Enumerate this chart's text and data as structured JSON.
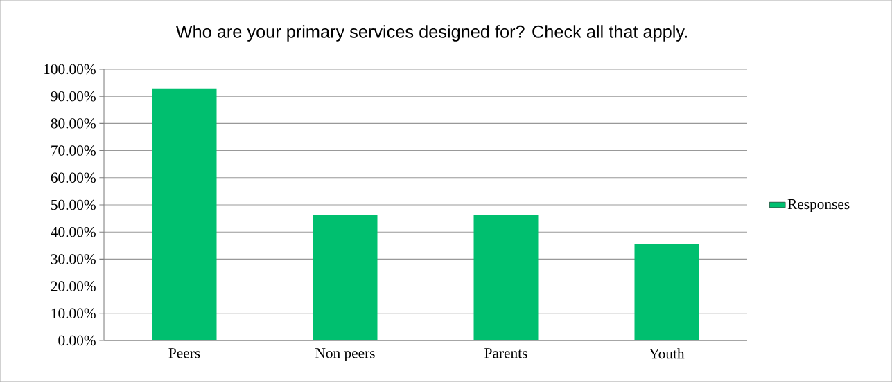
{
  "chart_data": {
    "type": "bar",
    "title": "Who are your primary services designed for? Check all that apply.",
    "categories": [
      "Peers",
      "Non peers",
      "Parents",
      "Youth"
    ],
    "series": [
      {
        "name": "Responses",
        "color": "#00bf6f",
        "values": [
          92.9,
          46.4,
          46.4,
          35.7
        ]
      }
    ],
    "ylim": [
      0,
      100
    ],
    "yticks": [
      {
        "value": 0,
        "label": "0.00%"
      },
      {
        "value": 10,
        "label": "10.00%"
      },
      {
        "value": 20,
        "label": "20.00%"
      },
      {
        "value": 30,
        "label": "30.00%"
      },
      {
        "value": 40,
        "label": "40.00%"
      },
      {
        "value": 50,
        "label": "50.00%"
      },
      {
        "value": 60,
        "label": "60.00%"
      },
      {
        "value": 70,
        "label": "70.00%"
      },
      {
        "value": 80,
        "label": "80.00%"
      },
      {
        "value": 90,
        "label": "90.00%"
      },
      {
        "value": 100,
        "label": "100.00%"
      }
    ],
    "grid": "y",
    "legend": "right"
  }
}
